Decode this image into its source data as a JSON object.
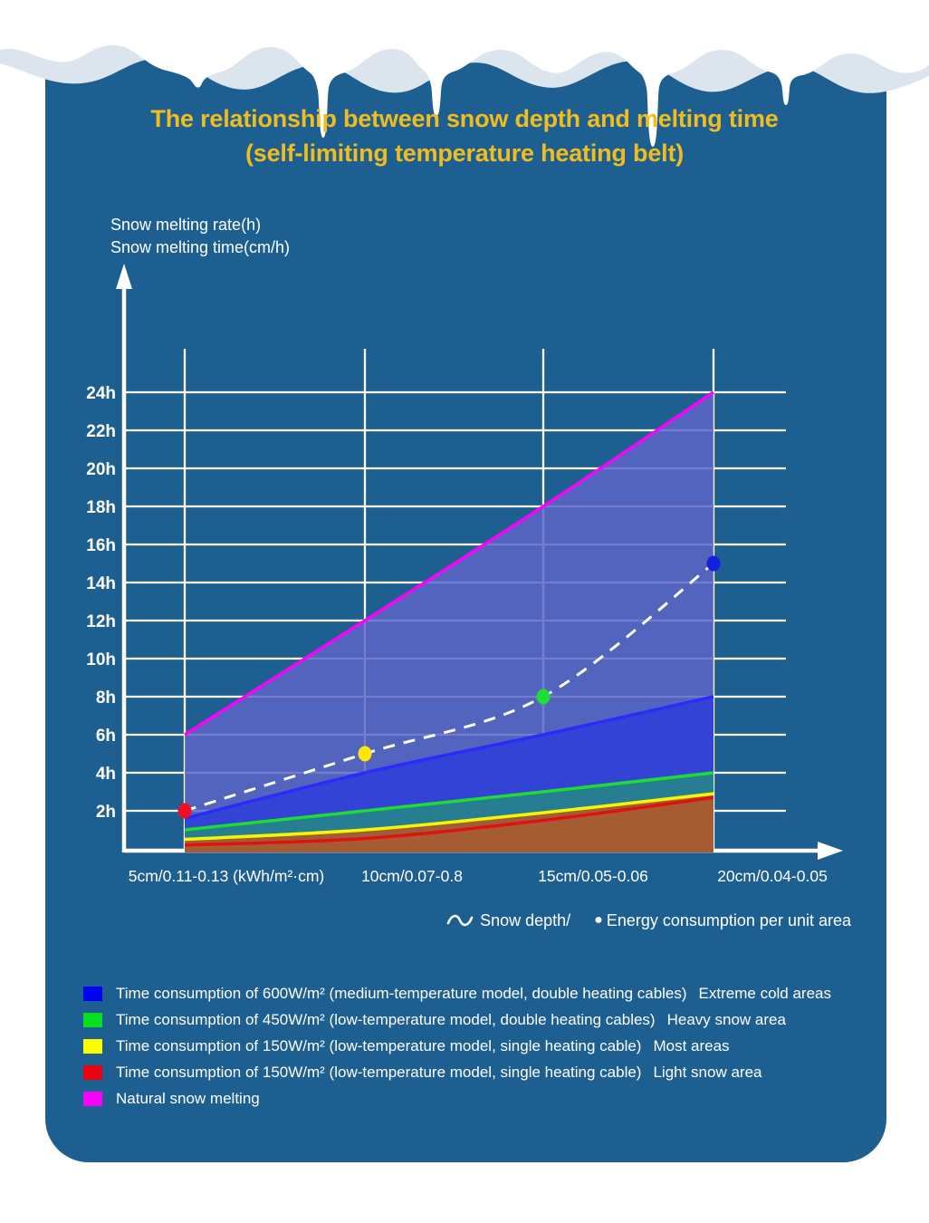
{
  "title": {
    "line1": "The relationship between snow depth and melting time",
    "line2": "(self-limiting temperature heating belt)"
  },
  "y_axis": {
    "caption_line1": "Snow melting rate(h)",
    "caption_line2": "Snow melting time(cm/h)"
  },
  "footnote": {
    "snow_depth_label": "Snow depth/",
    "dot": "●",
    "energy_label": "Energy consumption per unit area"
  },
  "legend": [
    {
      "color": "#0202f2",
      "label": "Time consumption of 600W/m² (medium-temperature model, double heating cables)",
      "area": "Extreme cold areas"
    },
    {
      "color": "#06e01e",
      "label": "Time consumption of 450W/m² (low-temperature model, double heating cables)",
      "area": "Heavy snow area"
    },
    {
      "color": "#fdfd02",
      "label": "Time consumption of 150W/m² (low-temperature model, single heating cable)",
      "area": "Most areas"
    },
    {
      "color": "#e80513",
      "label": "Time consumption of 150W/m² (low-temperature model, single heating cable)",
      "area": "Light snow area"
    },
    {
      "color": "#f704f7",
      "label": "Natural snow melting",
      "area": ""
    }
  ],
  "chart_data": {
    "type": "area",
    "title": "The relationship between snow depth and melting time (self-limiting temperature heating belt)",
    "xlabel": "Snow depth / energy consumption per unit area",
    "ylabel": "Snow melting time (hours)",
    "ylim": [
      0,
      24
    ],
    "grid": true,
    "categories": [
      "5cm/0.11-0.13 (kWh/m²·cm)",
      "10cm/0.07-0.8",
      "15cm/0.05-0.06",
      "20cm/0.04-0.05"
    ],
    "y_ticks": [
      "24h",
      "22h",
      "20h",
      "18h",
      "16h",
      "14h",
      "12h",
      "10h",
      "8h",
      "6h",
      "4h",
      "2h"
    ],
    "series": [
      {
        "id": "natural",
        "name": "Natural snow melting",
        "values": [
          6,
          12,
          18,
          24
        ],
        "line_color": "#f704f7",
        "fill_color": "#5d65c5",
        "fill_opacity": 0.85
      },
      {
        "id": "w600",
        "name": "Time consumption of 600W/m² (medium-temperature model, double heating cables)",
        "values": [
          1.6,
          4,
          6,
          8
        ],
        "line_color": "#2b2bfa",
        "fill_color": "#3140d8",
        "fill_opacity": 0.92
      },
      {
        "id": "w450",
        "name": "Time consumption of 450W/m² (low-temperature model, double heating cables)",
        "values": [
          1,
          2,
          3,
          4
        ],
        "line_color": "#1fdd2e",
        "fill_color": "#27828e",
        "fill_opacity": 0.95
      },
      {
        "id": "w150-most",
        "name": "Time consumption of 150W/m² (low-temperature model, single heating cable) — most areas",
        "values": [
          0.5,
          1,
          1.9,
          2.9
        ],
        "line_color": "#f6f600",
        "fill_color": "#a55c33",
        "fill_opacity": 0.95
      },
      {
        "id": "w150-light",
        "name": "Time consumption of 150W/m² (low-temperature model, single heating cable) — light snow area",
        "values": [
          0.2,
          0.55,
          1.5,
          2.7
        ],
        "line_color": "#e01111",
        "fill_color": "#a55c33",
        "fill_opacity": 1
      }
    ],
    "energy_curve": {
      "name": "Snow depth / Energy consumption per unit area",
      "values": [
        2,
        5,
        8,
        15
      ],
      "line_style": "dashed",
      "line_color": "#ffffff",
      "point_colors": [
        "#f01023",
        "#ffe603",
        "#1ddf33",
        "#1420e0"
      ]
    },
    "legend_position": "bottom"
  }
}
